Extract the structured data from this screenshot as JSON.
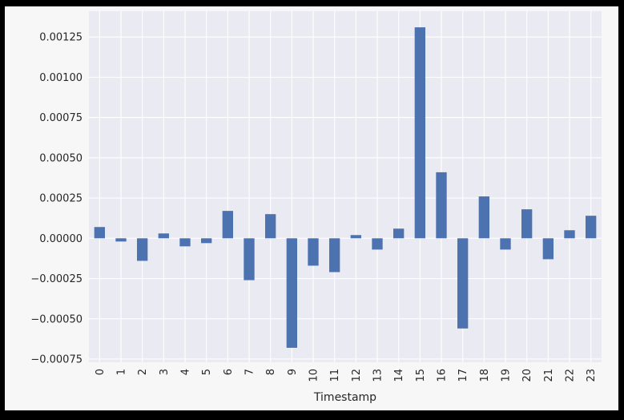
{
  "chart_data": {
    "type": "bar",
    "xlabel": "Timestamp",
    "ylabel": "",
    "title": "",
    "categories": [
      "0",
      "1",
      "2",
      "3",
      "4",
      "5",
      "6",
      "7",
      "8",
      "9",
      "10",
      "11",
      "12",
      "13",
      "14",
      "15",
      "16",
      "17",
      "18",
      "19",
      "20",
      "21",
      "22",
      "23"
    ],
    "values": [
      7e-05,
      -2e-05,
      -0.00014,
      3e-05,
      -5e-05,
      -3e-05,
      0.00017,
      -0.00026,
      0.00015,
      -0.00068,
      -0.00017,
      -0.00021,
      2e-05,
      -7e-05,
      6e-05,
      0.00131,
      0.00041,
      -0.00056,
      0.00026,
      -7e-05,
      0.00018,
      -0.00013,
      5e-05,
      0.00014
    ],
    "ylim": [
      -0.00077,
      0.00141
    ],
    "yticks": [
      -0.00075,
      -0.0005,
      -0.00025,
      0.0,
      0.00025,
      0.0005,
      0.00075,
      0.001,
      0.00125
    ],
    "ytick_labels": [
      "−0.00075",
      "−0.00050",
      "−0.00025",
      "0.00000",
      "0.00025",
      "0.00050",
      "0.00075",
      "0.00100",
      "0.00125"
    ],
    "grid": true,
    "colors": {
      "bar": "#4c72b0",
      "plot_bg": "#eaeaf2",
      "grid": "#ffffff",
      "text": "#262626"
    }
  }
}
